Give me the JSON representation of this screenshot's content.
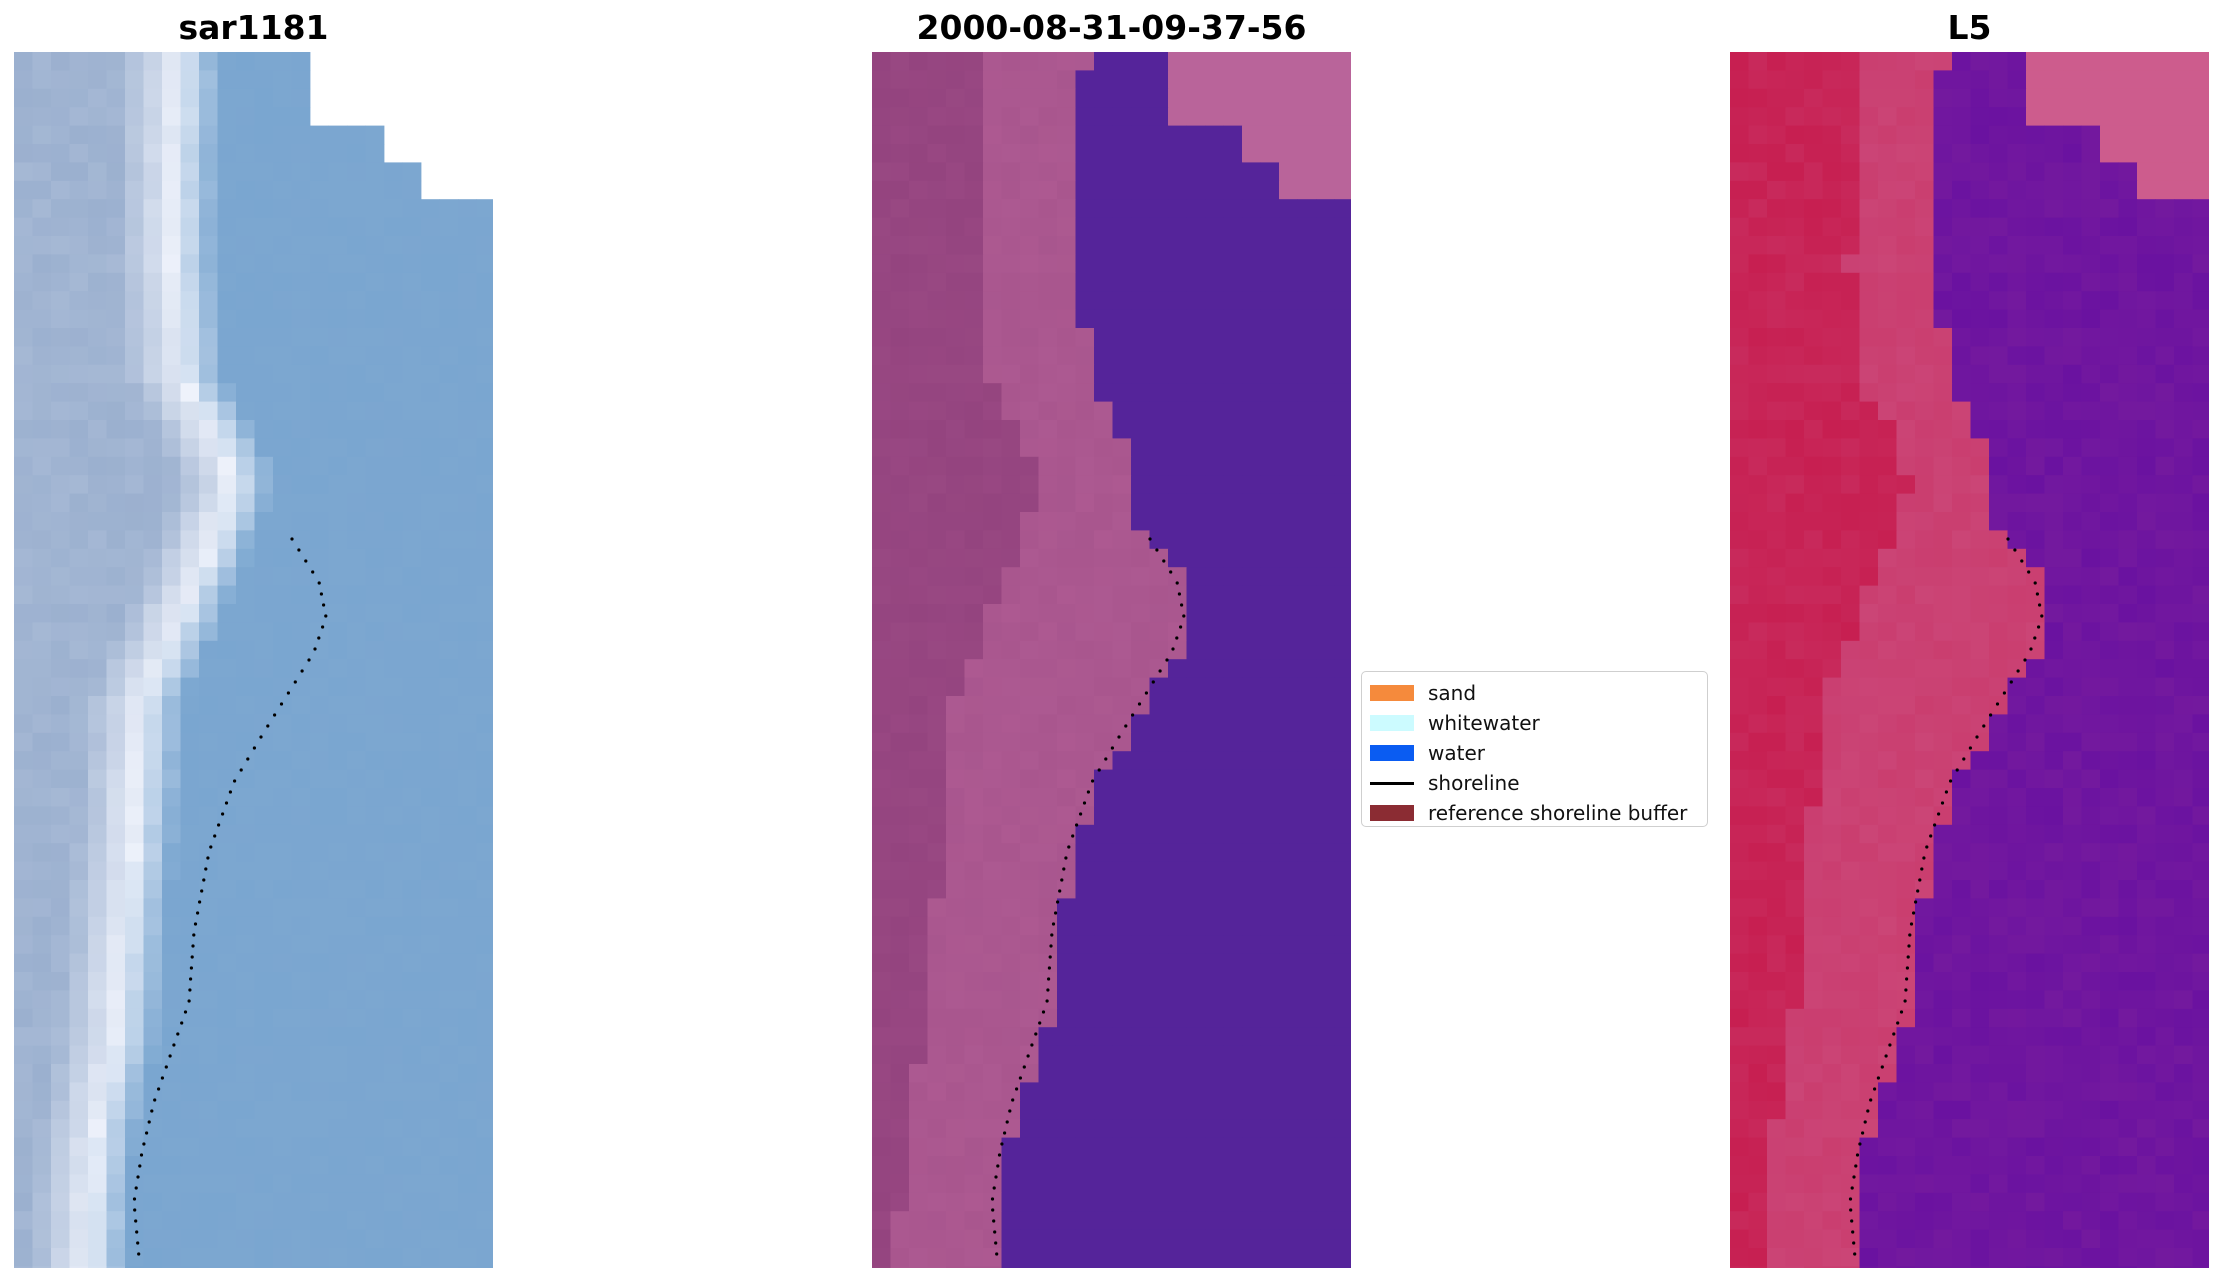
{
  "panels": [
    {
      "title": "sar1181",
      "palette": "rgb"
    },
    {
      "title": "2000-08-31-09-37-56",
      "palette": "classified"
    },
    {
      "title": "L5",
      "palette": "index"
    }
  ],
  "legend": {
    "items": [
      {
        "label": "sand",
        "color": "#f58a3c",
        "kind": "patch"
      },
      {
        "label": "whitewater",
        "color": "#ccfbff",
        "kind": "patch"
      },
      {
        "label": "water",
        "color": "#0a5cf2",
        "kind": "patch"
      },
      {
        "label": "shoreline",
        "color": "#000000",
        "kind": "line"
      },
      {
        "label": "reference shoreline buffer",
        "color": "#8b2c33",
        "kind": "patch"
      }
    ]
  },
  "colors": {
    "rgb_water": "#7aa6d0",
    "rgb_beach": "#eef2fb",
    "rgb_land": "#9bb0cf",
    "class_land": "#94447f",
    "class_sand": "#b9649a",
    "class_water": "#55249a",
    "index_land": "#c71f51",
    "index_mid": "#cd5c8d",
    "index_water": "#6a12a0"
  }
}
